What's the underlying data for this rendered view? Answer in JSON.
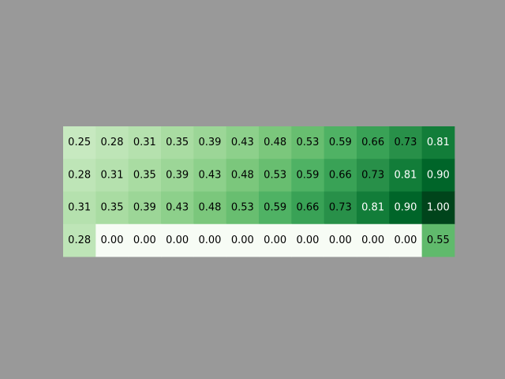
{
  "chart_data": {
    "type": "heatmap",
    "title": "",
    "xlabel": "",
    "ylabel": "",
    "colormap": "Greens",
    "value_range": [
      0,
      1
    ],
    "background_color": "#999999",
    "grid": false,
    "rows": [
      [
        "0.25",
        "0.28",
        "0.31",
        "0.35",
        "0.39",
        "0.43",
        "0.48",
        "0.53",
        "0.59",
        "0.66",
        "0.73",
        "0.81"
      ],
      [
        "0.28",
        "0.31",
        "0.35",
        "0.39",
        "0.43",
        "0.48",
        "0.53",
        "0.59",
        "0.66",
        "0.73",
        "0.81",
        "0.90"
      ],
      [
        "0.31",
        "0.35",
        "0.39",
        "0.43",
        "0.48",
        "0.53",
        "0.59",
        "0.66",
        "0.73",
        "0.81",
        "0.90",
        "1.00"
      ],
      [
        "0.28",
        "0.00",
        "0.00",
        "0.00",
        "0.00",
        "0.00",
        "0.00",
        "0.00",
        "0.00",
        "0.00",
        "0.00",
        "0.55"
      ]
    ]
  }
}
